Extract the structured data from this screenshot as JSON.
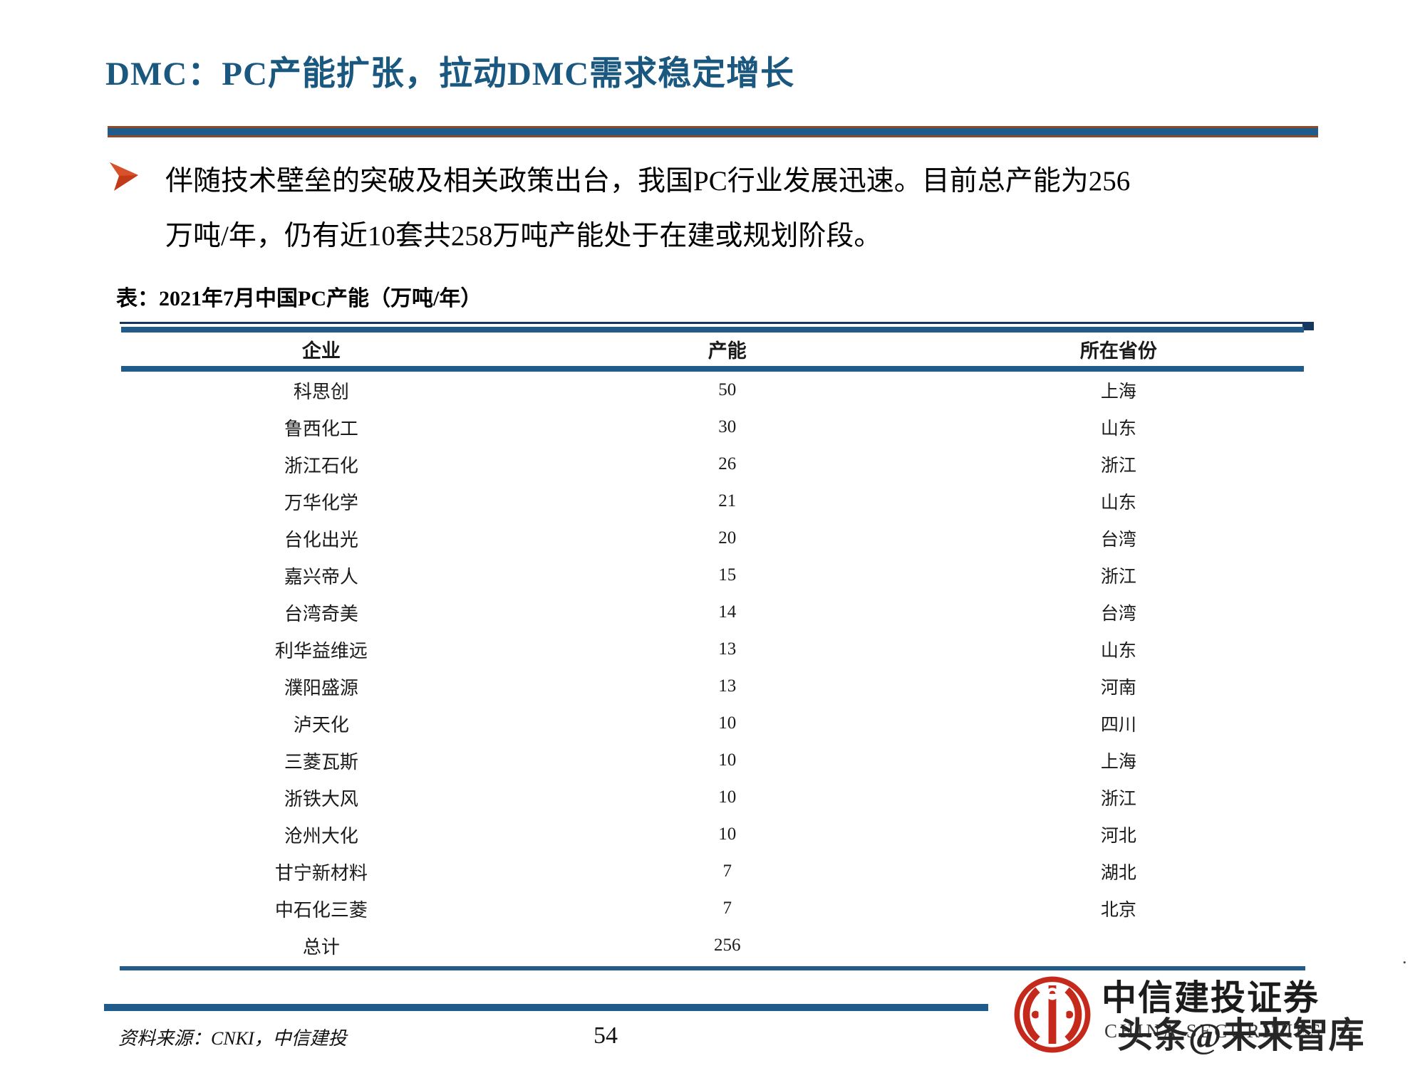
{
  "slide": {
    "title": "DMC：PC产能扩张，拉动DMC需求稳定增长",
    "bullet": "伴随技术壁垒的突破及相关政策出台，我国PC行业发展迅速。目前总产能为256\n万吨/年，仍有近10套共258万吨产能处于在建或规划阶段。",
    "table_caption": "表：2021年7月中国PC产能（万吨/年）"
  },
  "table": {
    "columns": [
      "企业",
      "产能",
      "所在省份"
    ],
    "rows": [
      [
        "科思创",
        "50",
        "上海"
      ],
      [
        "鲁西化工",
        "30",
        "山东"
      ],
      [
        "浙江石化",
        "26",
        "浙江"
      ],
      [
        "万华化学",
        "21",
        "山东"
      ],
      [
        "台化出光",
        "20",
        "台湾"
      ],
      [
        "嘉兴帝人",
        "15",
        "浙江"
      ],
      [
        "台湾奇美",
        "14",
        "台湾"
      ],
      [
        "利华益维远",
        "13",
        "山东"
      ],
      [
        "濮阳盛源",
        "13",
        "河南"
      ],
      [
        "泸天化",
        "10",
        "四川"
      ],
      [
        "三菱瓦斯",
        "10",
        "上海"
      ],
      [
        "浙铁大风",
        "10",
        "浙江"
      ],
      [
        "沧州大化",
        "10",
        "河北"
      ],
      [
        "甘宁新材料",
        "7",
        "湖北"
      ],
      [
        "中石化三菱",
        "7",
        "北京"
      ],
      [
        "总计",
        "256",
        ""
      ]
    ]
  },
  "footer": {
    "source": "资料来源：CNKI，中信建投",
    "page_number": "54",
    "stray_mark": "."
  },
  "logo": {
    "name_cn": "中信建投证券",
    "name_en": "CHINA SECURITIES",
    "watermark": "头条@未来智库"
  },
  "colors": {
    "accent_blue": "#1F5C8B",
    "dark_navy_line": "#17375E",
    "title_blue": "#1B5880",
    "bar_brown": "#8C4A28",
    "bullet_arrow_red": "#C23A17",
    "logo_red": "#C4291C"
  }
}
